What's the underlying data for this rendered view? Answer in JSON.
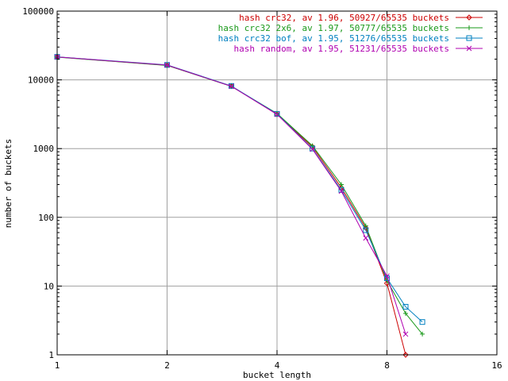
{
  "chart_data": {
    "type": "line",
    "xlabel": "bucket length",
    "ylabel": "number of buckets",
    "x_scale": "log2",
    "y_scale": "log10",
    "xlim": [
      1,
      16
    ],
    "ylim": [
      1,
      100000
    ],
    "x_ticks": [
      "1",
      "2",
      "4",
      "8",
      "16"
    ],
    "y_ticks": [
      "1",
      "10",
      "100",
      "1000",
      "10000",
      "100000"
    ],
    "grid": true,
    "legend_position": "top-right",
    "series": [
      {
        "name": "hash crc32, av 1.96, 50927/65535 buckets",
        "color": "#cc0000",
        "marker": "diamond",
        "x": [
          1,
          2,
          3,
          4,
          5,
          6,
          7,
          8,
          9
        ],
        "y": [
          21500,
          16300,
          8100,
          3150,
          1060,
          270,
          70,
          11,
          1
        ]
      },
      {
        "name": "hash crc32 2x6, av 1.97, 50777/65535 buckets",
        "color": "#1a991a",
        "marker": "plus",
        "x": [
          1,
          2,
          3,
          4,
          5,
          6,
          7,
          8,
          9,
          10
        ],
        "y": [
          21400,
          16200,
          8050,
          3250,
          1100,
          300,
          75,
          12,
          4,
          2
        ]
      },
      {
        "name": "hash crc32 bof, av 1.95, 51276/65535 buckets",
        "color": "#0080c0",
        "marker": "square",
        "x": [
          1,
          2,
          3,
          4,
          5,
          6,
          7,
          8,
          9,
          10
        ],
        "y": [
          21600,
          16500,
          8150,
          3200,
          1000,
          250,
          65,
          13,
          5,
          3
        ]
      },
      {
        "name": "hash random, av 1.95, 51231/65535 buckets",
        "color": "#b000b0",
        "marker": "cross",
        "x": [
          1,
          2,
          3,
          4,
          5,
          6,
          7,
          8,
          9
        ],
        "y": [
          21500,
          16400,
          8050,
          3150,
          980,
          240,
          50,
          14,
          2
        ]
      }
    ]
  }
}
